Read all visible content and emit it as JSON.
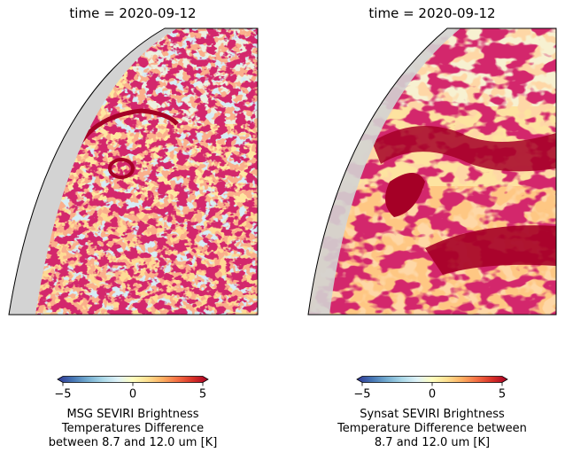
{
  "chart_data": [
    {
      "type": "heatmap",
      "title": "time = 2020-09-12",
      "colorbar": {
        "label": "MSG SEVIRI Brightness\nTemperatures Difference\nbetween  8.7 and 12.0 um [K]",
        "ticks": [
          "−5",
          "0",
          "5"
        ],
        "range": [
          -5,
          5
        ],
        "colormap": "RdYlBu_r"
      }
    },
    {
      "type": "heatmap",
      "title": "time = 2020-09-12",
      "colorbar": {
        "label": "Synsat SEVIRI Brightness\nTemperature Difference between\n8.7 and 12.0 um [K]",
        "ticks": [
          "−5",
          "0",
          "5"
        ],
        "range": [
          -5,
          5
        ],
        "colormap": "RdYlBu_r"
      }
    }
  ],
  "colors": {
    "colormap_stops": [
      "#313695",
      "#4575b4",
      "#74add1",
      "#abd9e9",
      "#e0f3f8",
      "#ffffbf",
      "#fee090",
      "#fdae61",
      "#f46d43",
      "#d73027",
      "#a50026"
    ],
    "missing": "#d3d3d3"
  }
}
